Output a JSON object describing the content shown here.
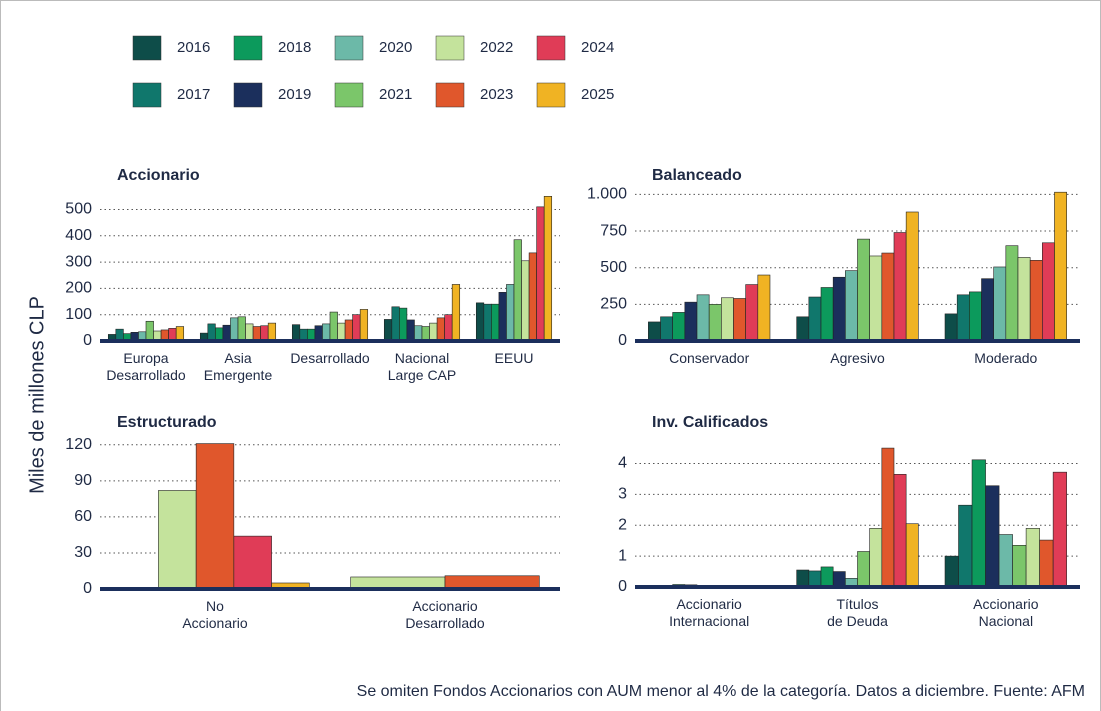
{
  "y_label": "Miles de millones CLP",
  "note": "Se omiten Fondos Accionarios con AUM menor al 4% de la categoría. Datos a diciembre. Fuente: AFM",
  "legend": [
    {
      "name": "2016",
      "color": "#0e4d49"
    },
    {
      "name": "2017",
      "color": "#10776c"
    },
    {
      "name": "2018",
      "color": "#0c9a5c"
    },
    {
      "name": "2019",
      "color": "#1b2f5c"
    },
    {
      "name": "2020",
      "color": "#6cb9a8"
    },
    {
      "name": "2021",
      "color": "#7bc66a"
    },
    {
      "name": "2022",
      "color": "#c4e39c"
    },
    {
      "name": "2023",
      "color": "#e0572c"
    },
    {
      "name": "2024",
      "color": "#e03c57"
    },
    {
      "name": "2025",
      "color": "#f0b323"
    }
  ],
  "chart_data": [
    {
      "type": "bar",
      "title": "Accionario",
      "categories": [
        "Europa\nDesarrollado",
        "Asia\nEmergente",
        "Desarrollado",
        "Nacional\nLarge CAP",
        "EEUU"
      ],
      "ylim": [
        0,
        555
      ],
      "yticks": [
        0,
        100,
        200,
        300,
        400,
        500
      ],
      "grid": true,
      "series": [
        {
          "values": [
            25,
            30,
            62,
            82,
            145
          ]
        },
        {
          "values": [
            45,
            65,
            45,
            130,
            140
          ]
        },
        {
          "values": [
            28,
            50,
            45,
            125,
            140
          ]
        },
        {
          "values": [
            33,
            60,
            58,
            80,
            185
          ]
        },
        {
          "values": [
            35,
            88,
            65,
            58,
            215
          ]
        },
        {
          "values": [
            75,
            92,
            110,
            55,
            385
          ]
        },
        {
          "values": [
            38,
            65,
            68,
            68,
            305
          ]
        },
        {
          "values": [
            42,
            55,
            80,
            88,
            335
          ]
        },
        {
          "values": [
            48,
            58,
            100,
            100,
            510
          ]
        },
        {
          "values": [
            55,
            68,
            120,
            215,
            550
          ]
        }
      ]
    },
    {
      "type": "bar",
      "title": "Balanceado",
      "categories": [
        "Conservador",
        "Agresivo",
        "Moderado"
      ],
      "ylim": [
        0,
        1030
      ],
      "yticks": [
        0,
        250,
        500,
        750,
        {
          "value": 1000,
          "label": "1.000"
        }
      ],
      "grid": true,
      "series": [
        {
          "values": [
            130,
            165,
            185
          ]
        },
        {
          "values": [
            165,
            300,
            315
          ]
        },
        {
          "values": [
            195,
            365,
            335
          ]
        },
        {
          "values": [
            265,
            435,
            425
          ]
        },
        {
          "values": [
            315,
            480,
            505
          ]
        },
        {
          "values": [
            250,
            695,
            650
          ]
        },
        {
          "values": [
            295,
            580,
            570
          ]
        },
        {
          "values": [
            290,
            600,
            550
          ]
        },
        {
          "values": [
            385,
            740,
            670
          ]
        },
        {
          "values": [
            450,
            880,
            1015
          ]
        }
      ]
    },
    {
      "type": "bar",
      "title": "Estructurado",
      "categories": [
        "No\nAccionario",
        "Accionario\nDesarrollado"
      ],
      "ylim": [
        0,
        124
      ],
      "yticks": [
        0,
        30,
        60,
        90,
        120
      ],
      "grid": true,
      "series": [
        {
          "values": [
            null,
            null
          ]
        },
        {
          "values": [
            null,
            null
          ]
        },
        {
          "values": [
            null,
            null
          ]
        },
        {
          "values": [
            null,
            null
          ]
        },
        {
          "values": [
            null,
            null
          ]
        },
        {
          "values": [
            1,
            null
          ]
        },
        {
          "values": [
            82,
            10
          ]
        },
        {
          "values": [
            121,
            11
          ]
        },
        {
          "values": [
            44,
            null
          ]
        },
        {
          "values": [
            5,
            null
          ]
        }
      ]
    },
    {
      "type": "bar",
      "title": "Inv. Calificados",
      "categories": [
        "Accionario\nInternacional",
        "Títulos\nde Deuda",
        "Accionario\nNacional"
      ],
      "ylim": [
        0,
        4.6
      ],
      "yticks": [
        0,
        1,
        2,
        3,
        4
      ],
      "grid": true,
      "series": [
        {
          "values": [
            0.01,
            0.55,
            1.0
          ]
        },
        {
          "values": [
            0.01,
            0.52,
            2.65
          ]
        },
        {
          "values": [
            0.08,
            0.65,
            4.12
          ]
        },
        {
          "values": [
            0.07,
            0.5,
            3.28
          ]
        },
        {
          "values": [
            0.05,
            0.28,
            1.7
          ]
        },
        {
          "values": [
            0.01,
            1.15,
            1.35
          ]
        },
        {
          "values": [
            0.01,
            1.9,
            1.9
          ]
        },
        {
          "values": [
            0.01,
            4.5,
            1.52
          ]
        },
        {
          "values": [
            0.01,
            3.65,
            3.72
          ]
        },
        {
          "values": [
            0.01,
            2.05,
            null
          ]
        }
      ]
    }
  ]
}
